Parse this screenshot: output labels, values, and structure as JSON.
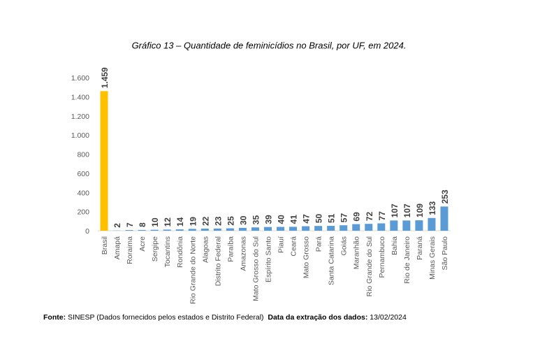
{
  "chart_data": {
    "type": "bar",
    "title": "Gráfico 13 – Quantidade de feminicídios no Brasil, por UF, em 2024.",
    "categories": [
      "Brasil",
      "Amapá",
      "Roraima",
      "Acre",
      "Sergipe",
      "Tocantins",
      "Rondônia",
      "Rio Grande do Norte",
      "Alagoas",
      "Distrito Federal",
      "Paraíba",
      "Amazonas",
      "Mato Grosso do Sul",
      "Espírito Santo",
      "Piauí",
      "Ceará",
      "Mato Grosso",
      "Pará",
      "Santa Catarina",
      "Goiás",
      "Maranhão",
      "Rio Grande do Sul",
      "Pernambuco",
      "Bahia",
      "Rio de Janeiro",
      "Paraná",
      "Minas Gerais",
      "São Paulo"
    ],
    "values": [
      1459,
      2,
      7,
      8,
      10,
      12,
      14,
      19,
      22,
      23,
      25,
      30,
      35,
      39,
      40,
      41,
      47,
      50,
      51,
      57,
      69,
      72,
      77,
      107,
      107,
      109,
      133,
      253
    ],
    "value_labels": [
      "1.459",
      "2",
      "7",
      "8",
      "10",
      "12",
      "14",
      "19",
      "22",
      "23",
      "25",
      "30",
      "35",
      "39",
      "40",
      "41",
      "47",
      "50",
      "51",
      "57",
      "69",
      "72",
      "77",
      "107",
      "107",
      "109",
      "133",
      "253"
    ],
    "colors": [
      "#ffc000",
      "#5b9bd5",
      "#5b9bd5",
      "#5b9bd5",
      "#5b9bd5",
      "#5b9bd5",
      "#5b9bd5",
      "#5b9bd5",
      "#5b9bd5",
      "#5b9bd5",
      "#5b9bd5",
      "#5b9bd5",
      "#5b9bd5",
      "#5b9bd5",
      "#5b9bd5",
      "#5b9bd5",
      "#5b9bd5",
      "#5b9bd5",
      "#5b9bd5",
      "#5b9bd5",
      "#5b9bd5",
      "#5b9bd5",
      "#5b9bd5",
      "#5b9bd5",
      "#5b9bd5",
      "#5b9bd5",
      "#5b9bd5",
      "#5b9bd5"
    ],
    "ylim": [
      0,
      1600
    ],
    "yticks": [
      0,
      200,
      400,
      600,
      800,
      {
        "value": 1000,
        "label": "1.000"
      },
      {
        "value": 1200,
        "label": "1.200"
      },
      {
        "value": 1400,
        "label": "1.400"
      },
      {
        "value": 1600,
        "label": "1.600"
      }
    ],
    "grid": false
  },
  "footer": {
    "source_label": "Fonte:",
    "source": "SINESP (Dados fornecidos pelos estados e Distrito Federal)",
    "date_label": "Data da extração dos dados:",
    "date": "13/02/2024"
  }
}
